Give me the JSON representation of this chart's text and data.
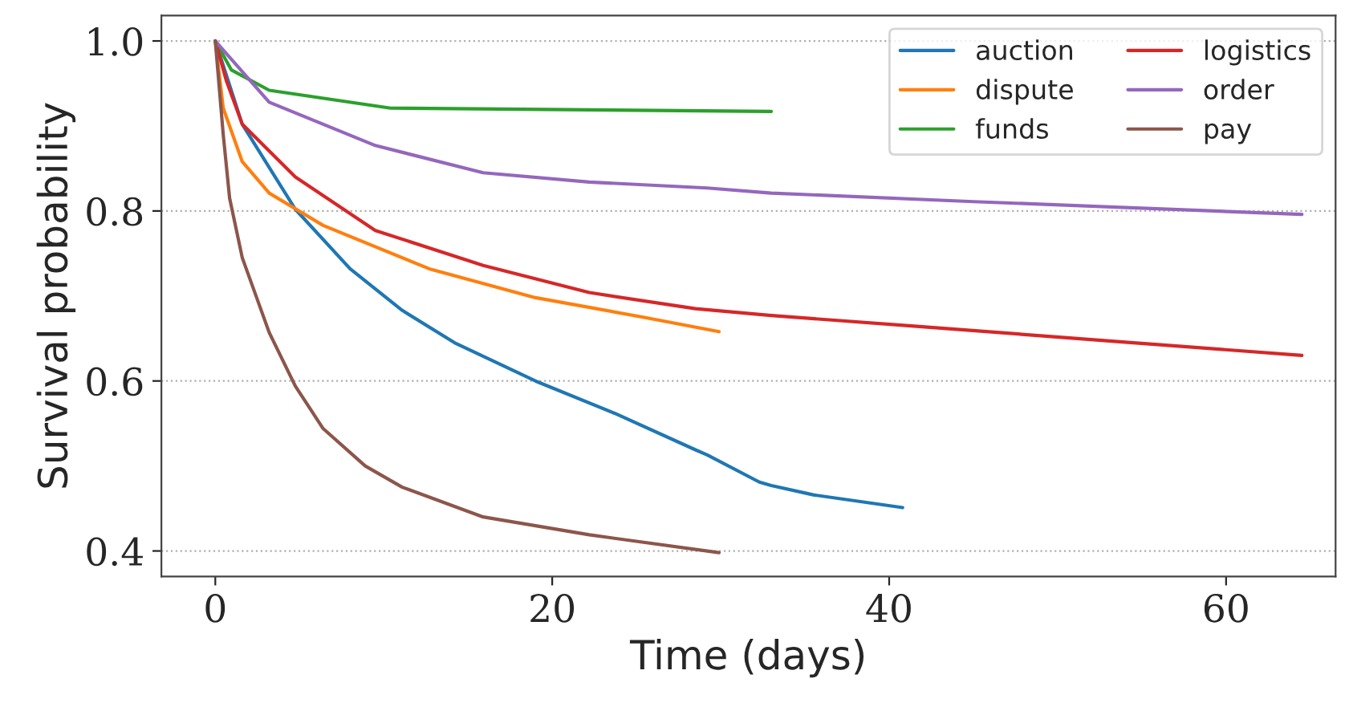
{
  "chart_data": {
    "type": "line",
    "xlabel": "Time (days)",
    "ylabel": "Survival probability",
    "xlim": [
      -3.2,
      66.5
    ],
    "ylim": [
      0.37,
      1.03
    ],
    "xticks": [
      0,
      20,
      40,
      60
    ],
    "yticks": [
      {
        "value": 0.4,
        "label": "0.4"
      },
      {
        "value": 0.6,
        "label": "0.6"
      },
      {
        "value": 0.8,
        "label": "0.8"
      },
      {
        "value": 1.0,
        "label": "1.0"
      }
    ],
    "grid": "y",
    "legend": "top right",
    "marker": "none",
    "line_style": "solid",
    "series": [
      {
        "name": "auction",
        "color": "#1f77b4",
        "x": [
          0,
          1.6,
          4.75,
          8.0,
          11.1,
          14.2,
          19.0,
          23.7,
          28.5,
          29.2,
          32.3,
          33.0,
          35.5,
          40.8
        ],
        "values": [
          1.0,
          0.902,
          0.802,
          0.732,
          0.683,
          0.645,
          0.6,
          0.562,
          0.519,
          0.513,
          0.481,
          0.477,
          0.466,
          0.451
        ]
      },
      {
        "name": "dispute",
        "color": "#ff7f0e",
        "x": [
          0,
          0.47,
          1.6,
          3.2,
          6.4,
          12.7,
          19.0,
          25.4,
          29.9
        ],
        "values": [
          1.0,
          0.921,
          0.858,
          0.821,
          0.783,
          0.732,
          0.698,
          0.675,
          0.658
        ]
      },
      {
        "name": "funds",
        "color": "#2ca02c",
        "x": [
          0,
          0.95,
          3.2,
          10.4,
          33.0
        ],
        "values": [
          1.0,
          0.966,
          0.942,
          0.921,
          0.917
        ]
      },
      {
        "name": "logistics",
        "color": "#d62728",
        "x": [
          0,
          0.66,
          1.6,
          4.75,
          9.5,
          15.9,
          22.2,
          28.5,
          33.0,
          41.8,
          54.5,
          64.5
        ],
        "values": [
          1.0,
          0.953,
          0.902,
          0.84,
          0.777,
          0.736,
          0.704,
          0.685,
          0.677,
          0.664,
          0.645,
          0.63
        ]
      },
      {
        "name": "order",
        "color": "#9467bd",
        "x": [
          0,
          3.2,
          9.5,
          15.9,
          22.2,
          29.2,
          33.0,
          45.0,
          64.5
        ],
        "values": [
          1.0,
          0.928,
          0.877,
          0.845,
          0.834,
          0.827,
          0.821,
          0.811,
          0.796
        ]
      },
      {
        "name": "pay",
        "color": "#8c564b",
        "x": [
          0,
          0.47,
          0.85,
          1.6,
          3.2,
          4.75,
          6.4,
          8.9,
          11.1,
          15.9,
          22.2,
          29.9
        ],
        "values": [
          1.0,
          0.89,
          0.815,
          0.745,
          0.657,
          0.594,
          0.544,
          0.5,
          0.475,
          0.44,
          0.419,
          0.398
        ]
      }
    ]
  }
}
